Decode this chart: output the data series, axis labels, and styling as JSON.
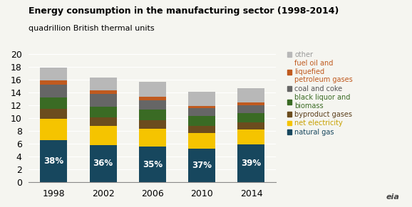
{
  "title": "Energy consumption in the manufacturing sector (1998-2014)",
  "subtitle": "quadrillion British thermal units",
  "years": [
    1998,
    2002,
    2006,
    2010,
    2014
  ],
  "categories": [
    "natural gas",
    "net electricity",
    "byproduct gases",
    "black liquor and biomass",
    "coal and coke",
    "fuel oil and liquefied petroleum gases",
    "other"
  ],
  "colors": [
    "#17475e",
    "#f5c400",
    "#6b4c1e",
    "#3a6b24",
    "#666666",
    "#c05a1f",
    "#b8b8b8"
  ],
  "data": {
    "natural gas": [
      6.6,
      5.8,
      5.5,
      5.2,
      5.9
    ],
    "net electricity": [
      3.3,
      3.0,
      2.8,
      2.5,
      2.3
    ],
    "byproduct gases": [
      1.5,
      1.3,
      1.3,
      1.1,
      1.1
    ],
    "black liquor and biomass": [
      1.8,
      1.7,
      1.7,
      1.5,
      1.5
    ],
    "coal and coke": [
      2.0,
      1.9,
      1.5,
      1.2,
      1.2
    ],
    "fuel oil and liquefied petroleum gases": [
      0.7,
      0.6,
      0.5,
      0.4,
      0.4
    ],
    "other": [
      2.0,
      2.0,
      2.3,
      2.2,
      2.2
    ]
  },
  "percentages": [
    "38%",
    "36%",
    "35%",
    "37%",
    "39%"
  ],
  "ylim": [
    0,
    20
  ],
  "yticks": [
    0,
    2,
    4,
    6,
    8,
    10,
    12,
    14,
    16,
    18,
    20
  ],
  "legend_labels": [
    "other",
    "fuel oil and\nliquefied\npetroleum gases",
    "coal and coke",
    "black liquor and\nbiomass",
    "byproduct gases",
    "net electricity",
    "natural gas"
  ],
  "legend_bar_keys": [
    "other",
    "fuel oil and liquefied petroleum gases",
    "coal and coke",
    "black liquor and biomass",
    "byproduct gases",
    "net electricity",
    "natural gas"
  ],
  "legend_colors": [
    "#b8b8b8",
    "#c05a1f",
    "#666666",
    "#3a6b24",
    "#6b4c1e",
    "#f5c400",
    "#17475e"
  ],
  "legend_text_colors": [
    "#999999",
    "#c05a1f",
    "#555555",
    "#3a6b24",
    "#5a3e1b",
    "#c8a000",
    "#17475e"
  ],
  "background_color": "#f5f5f0"
}
